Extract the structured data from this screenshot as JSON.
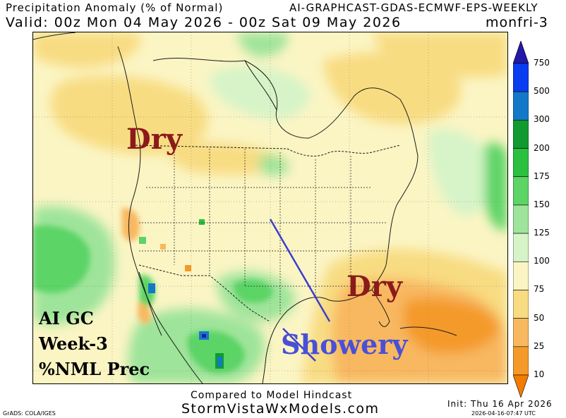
{
  "header": {
    "title_left": "Precipitation Anomaly (% of Normal)",
    "title_right": "AI-GRAPHCAST-GDAS-ECMWF-EPS-WEEKLY",
    "valid_line": "Valid: 00z Mon 04 May 2026 - 00z Sat 09 May 2026",
    "run_name": "monfri-3"
  },
  "annotations": {
    "dry_northwest": "Dry",
    "dry_southeast": "Dry",
    "showery": "Showery"
  },
  "map_label": {
    "line1": "AI GC",
    "line2": "Week-3",
    "line3": "%NML Prec"
  },
  "colorbar": {
    "ticks": [
      "750",
      "500",
      "300",
      "200",
      "175",
      "150",
      "125",
      "100",
      "75",
      "50",
      "25",
      "10"
    ],
    "colors": [
      "#2418a8",
      "#0a3cf0",
      "#1478c8",
      "#109a30",
      "#2cc040",
      "#5cd466",
      "#9ee49a",
      "#d6f4c8",
      "#fbf5c4",
      "#f8dc82",
      "#f8b860",
      "#f49a2a",
      "#f27b00"
    ]
  },
  "footer": {
    "compare": "Compared to Model Hindcast",
    "site": "StormVistaWxModels.com",
    "grads": "GrADS: COLA/IGES",
    "init": "Init: Thu 16 Apr 2026",
    "stamp": "2026-04-16-07:47 UTC"
  }
}
